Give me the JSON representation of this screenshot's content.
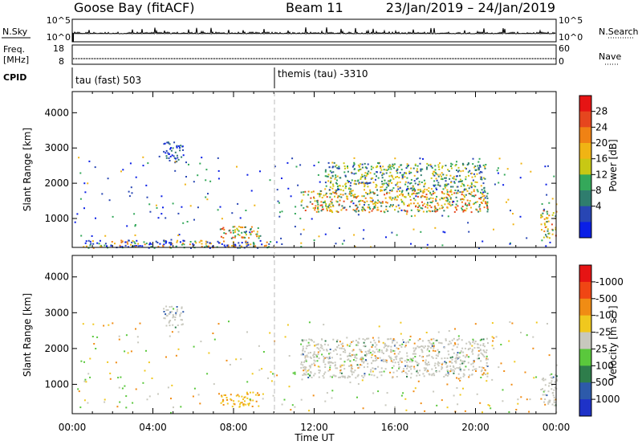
{
  "header": {
    "station": "Goose Bay (fitACF)",
    "beam": "Beam 11",
    "date_range": "23/Jan/2019 – 24/Jan/2019"
  },
  "strip_labels": {
    "nsky": "N.Sky",
    "nsky_ticks": [
      "10^5",
      "10^0"
    ],
    "nsearch": "N.Search",
    "nsearch_ticks": [
      "10^5",
      "10^0"
    ],
    "freq_line1": "Freq.",
    "freq_line2": "[MHz]",
    "freq_ticks": [
      "18",
      "8"
    ],
    "nave": "Nave",
    "nave_ticks": [
      "60",
      "0"
    ],
    "cpid": "CPID",
    "cpid_1": "tau (fast) 503",
    "cpid_2": "themis (tau) -3310"
  },
  "chart_data": [
    {
      "type": "heatmap",
      "panel": "power",
      "ylabel": "Slant Range [km]",
      "xlabel": "",
      "y_ticks": [
        1000,
        2000,
        3000,
        4000
      ],
      "ylim": [
        180,
        4600
      ],
      "x_ticks": [
        "00:00",
        "04:00",
        "08:00",
        "12:00",
        "16:00",
        "20:00",
        "00:00"
      ],
      "xlim_hours": [
        0,
        24
      ],
      "colorbar": {
        "label": "Power [dB]",
        "ticks": [
          "4",
          "8",
          "12",
          "16",
          "20",
          "24",
          "28"
        ],
        "colors": [
          "#0a1fe6",
          "#2846b4",
          "#2f7d6e",
          "#34a85a",
          "#c8c814",
          "#f0b414",
          "#f08214",
          "#e6461e",
          "#e61414"
        ]
      },
      "regions": [
        {
          "t": [
            4.5,
            5.5
          ],
          "r": [
            2600,
            3200
          ],
          "intensity": "low"
        },
        {
          "t": [
            7.3,
            9.3
          ],
          "r": [
            450,
            800
          ],
          "intensity": "high"
        },
        {
          "t": [
            11.3,
            20.6
          ],
          "r": [
            1200,
            1800
          ],
          "intensity": "high"
        },
        {
          "t": [
            12.5,
            20.5
          ],
          "r": [
            1800,
            2600
          ],
          "intensity": "mid"
        },
        {
          "t": [
            23.2,
            24
          ],
          "r": [
            400,
            1300
          ],
          "intensity": "high"
        },
        {
          "t": [
            0.5,
            10
          ],
          "r": [
            180,
            400
          ],
          "intensity": "mixed"
        }
      ]
    },
    {
      "type": "heatmap",
      "panel": "velocity",
      "ylabel": "Slant Range [km]",
      "xlabel": "Time UT",
      "y_ticks": [
        1000,
        2000,
        3000,
        4000
      ],
      "ylim": [
        180,
        4600
      ],
      "x_ticks": [
        "00:00",
        "04:00",
        "08:00",
        "12:00",
        "16:00",
        "20:00",
        "00:00"
      ],
      "xlim_hours": [
        0,
        24
      ],
      "colorbar": {
        "label": "Velocity [m s⁻¹]",
        "ticks": [
          "1000",
          "500",
          "100",
          "25",
          "-25",
          "-100",
          "-500",
          "-1000"
        ],
        "colors": [
          "#1e32c8",
          "#2d5aaa",
          "#2e7d4b",
          "#5ac83c",
          "#c8c8be",
          "#f0c81e",
          "#f08c14",
          "#f04614",
          "#e61414"
        ]
      },
      "regions": [
        {
          "t": [
            4.5,
            5.5
          ],
          "r": [
            2600,
            3200
          ],
          "color": "gray"
        },
        {
          "t": [
            7.3,
            9.3
          ],
          "r": [
            400,
            800
          ],
          "color": "yellow"
        },
        {
          "t": [
            11.3,
            20.6
          ],
          "r": [
            1200,
            2300
          ],
          "color": "gray"
        },
        {
          "t": [
            23.2,
            24
          ],
          "r": [
            400,
            1300
          ],
          "color": "gray"
        }
      ]
    }
  ]
}
